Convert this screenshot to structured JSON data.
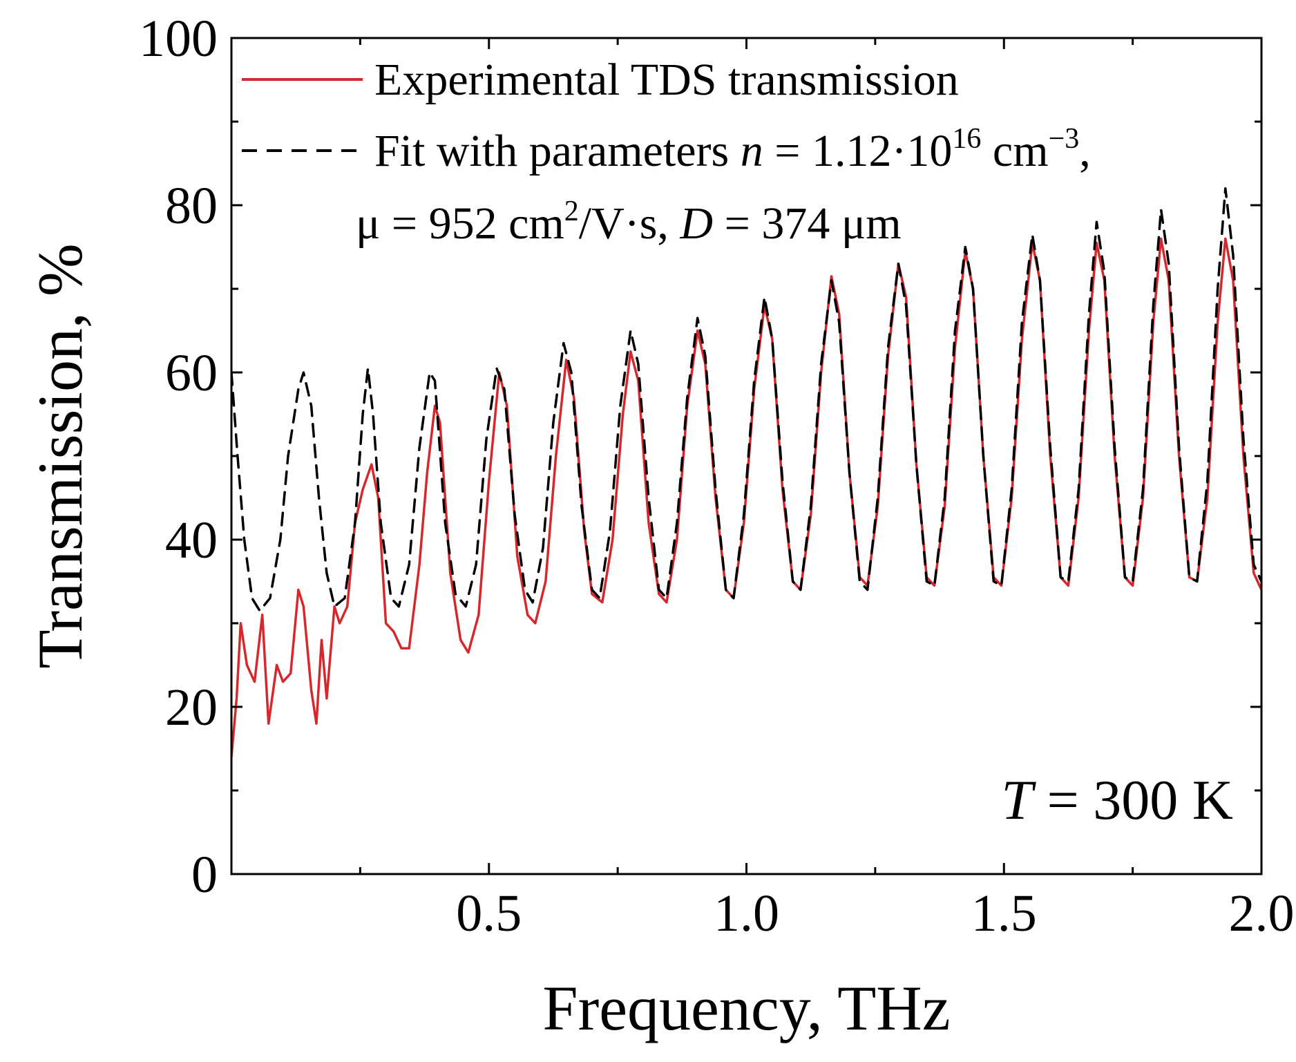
{
  "chart_data": {
    "type": "line",
    "xlabel": "Frequency, THz",
    "ylabel": "Transmission, %",
    "xlim": [
      0.0,
      2.0
    ],
    "ylim": [
      0,
      100
    ],
    "x_ticks": [
      0.5,
      1.0,
      1.5,
      2.0
    ],
    "x_tick_labels": [
      "0.5",
      "1.0",
      "1.5",
      "2.0"
    ],
    "x_minor_ticks": [
      0.25,
      0.75,
      1.25,
      1.75
    ],
    "y_ticks": [
      0,
      20,
      40,
      60,
      80,
      100
    ],
    "y_tick_labels": [
      "0",
      "20",
      "40",
      "60",
      "80",
      "100"
    ],
    "y_minor_ticks": [
      10,
      30,
      50,
      70,
      90
    ],
    "grid": false,
    "legend": {
      "placement": "top-left",
      "entries": [
        {
          "series": "experimental",
          "label": "Experimental TDS transmission"
        },
        {
          "series": "fit",
          "line1_prefix": "Fit with parameters ",
          "line1_var": "n",
          "line1_mid": " = 1.12·10",
          "line1_exp1": "16",
          "line1_unit": " cm",
          "line1_exp2": "−3",
          "line1_end": ",",
          "line2_mu": "μ = 952 cm",
          "line2_exp": "2",
          "line2_mid": "/V·s, ",
          "line2_var": "D",
          "line2_end": " = 374 μm"
        }
      ]
    },
    "annotation": {
      "var": "T",
      "text": " = 300 K",
      "placement": "bottom-right"
    },
    "series": [
      {
        "name": "experimental",
        "color": "#d6282c",
        "style": "solid",
        "points": [
          [
            0.0,
            14
          ],
          [
            0.01,
            21
          ],
          [
            0.018,
            30
          ],
          [
            0.03,
            25
          ],
          [
            0.045,
            23
          ],
          [
            0.06,
            31
          ],
          [
            0.072,
            18
          ],
          [
            0.088,
            25
          ],
          [
            0.1,
            23
          ],
          [
            0.115,
            24
          ],
          [
            0.13,
            34
          ],
          [
            0.14,
            32
          ],
          [
            0.155,
            22
          ],
          [
            0.165,
            18
          ],
          [
            0.175,
            28
          ],
          [
            0.185,
            21
          ],
          [
            0.2,
            32
          ],
          [
            0.21,
            30
          ],
          [
            0.225,
            32
          ],
          [
            0.24,
            42
          ],
          [
            0.255,
            46
          ],
          [
            0.272,
            49
          ],
          [
            0.285,
            45
          ],
          [
            0.3,
            30
          ],
          [
            0.315,
            29
          ],
          [
            0.33,
            27
          ],
          [
            0.345,
            27
          ],
          [
            0.365,
            37
          ],
          [
            0.38,
            48
          ],
          [
            0.395,
            56
          ],
          [
            0.405,
            54
          ],
          [
            0.425,
            36
          ],
          [
            0.445,
            28
          ],
          [
            0.46,
            26.5
          ],
          [
            0.48,
            31
          ],
          [
            0.5,
            47
          ],
          [
            0.52,
            60
          ],
          [
            0.535,
            56
          ],
          [
            0.555,
            38
          ],
          [
            0.575,
            31
          ],
          [
            0.59,
            30
          ],
          [
            0.61,
            35
          ],
          [
            0.63,
            50
          ],
          [
            0.65,
            61.5
          ],
          [
            0.665,
            57
          ],
          [
            0.685,
            41
          ],
          [
            0.7,
            33.5
          ],
          [
            0.72,
            32.5
          ],
          [
            0.74,
            40
          ],
          [
            0.76,
            55
          ],
          [
            0.775,
            62.5
          ],
          [
            0.79,
            59
          ],
          [
            0.81,
            42
          ],
          [
            0.83,
            33.5
          ],
          [
            0.845,
            32.5
          ],
          [
            0.865,
            40
          ],
          [
            0.885,
            56
          ],
          [
            0.905,
            65
          ],
          [
            0.92,
            61
          ],
          [
            0.94,
            45
          ],
          [
            0.96,
            34
          ],
          [
            0.975,
            33
          ],
          [
            0.995,
            42
          ],
          [
            1.015,
            58
          ],
          [
            1.035,
            68
          ],
          [
            1.05,
            64
          ],
          [
            1.07,
            46
          ],
          [
            1.09,
            35
          ],
          [
            1.105,
            34
          ],
          [
            1.125,
            43
          ],
          [
            1.145,
            60
          ],
          [
            1.165,
            71.5
          ],
          [
            1.18,
            67
          ],
          [
            1.2,
            48
          ],
          [
            1.22,
            35.5
          ],
          [
            1.235,
            34.5
          ],
          [
            1.255,
            44
          ],
          [
            1.275,
            62
          ],
          [
            1.295,
            73
          ],
          [
            1.31,
            69
          ],
          [
            1.33,
            49
          ],
          [
            1.35,
            35.5
          ],
          [
            1.365,
            34.5
          ],
          [
            1.385,
            44
          ],
          [
            1.405,
            63
          ],
          [
            1.425,
            74.5
          ],
          [
            1.44,
            70
          ],
          [
            1.46,
            50
          ],
          [
            1.48,
            35.5
          ],
          [
            1.495,
            34.5
          ],
          [
            1.515,
            45
          ],
          [
            1.535,
            64
          ],
          [
            1.555,
            75.5
          ],
          [
            1.57,
            71
          ],
          [
            1.59,
            50
          ],
          [
            1.61,
            35.5
          ],
          [
            1.625,
            34.5
          ],
          [
            1.645,
            45
          ],
          [
            1.665,
            65
          ],
          [
            1.68,
            75.5
          ],
          [
            1.695,
            71
          ],
          [
            1.715,
            50
          ],
          [
            1.735,
            35.5
          ],
          [
            1.75,
            34.5
          ],
          [
            1.77,
            45
          ],
          [
            1.79,
            66
          ],
          [
            1.805,
            76
          ],
          [
            1.82,
            71
          ],
          [
            1.84,
            50
          ],
          [
            1.86,
            35.5
          ],
          [
            1.875,
            35
          ],
          [
            1.895,
            45
          ],
          [
            1.915,
            66
          ],
          [
            1.93,
            76
          ],
          [
            1.945,
            71
          ],
          [
            1.965,
            50
          ],
          [
            1.985,
            36
          ],
          [
            2.0,
            34
          ]
        ]
      },
      {
        "name": "fit",
        "color": "#000000",
        "style": "dashed",
        "points": [
          [
            0.0,
            60
          ],
          [
            0.012,
            50
          ],
          [
            0.025,
            40
          ],
          [
            0.04,
            33
          ],
          [
            0.055,
            31.5
          ],
          [
            0.075,
            33
          ],
          [
            0.095,
            40
          ],
          [
            0.11,
            50
          ],
          [
            0.13,
            58
          ],
          [
            0.14,
            60
          ],
          [
            0.155,
            56
          ],
          [
            0.17,
            45
          ],
          [
            0.185,
            36
          ],
          [
            0.2,
            32
          ],
          [
            0.22,
            33
          ],
          [
            0.24,
            42
          ],
          [
            0.255,
            55
          ],
          [
            0.265,
            60.5
          ],
          [
            0.275,
            55
          ],
          [
            0.29,
            42
          ],
          [
            0.31,
            33
          ],
          [
            0.325,
            32
          ],
          [
            0.345,
            37
          ],
          [
            0.365,
            51
          ],
          [
            0.385,
            60
          ],
          [
            0.395,
            59
          ],
          [
            0.415,
            42
          ],
          [
            0.435,
            33.5
          ],
          [
            0.455,
            32
          ],
          [
            0.475,
            37
          ],
          [
            0.495,
            52
          ],
          [
            0.515,
            60.5
          ],
          [
            0.53,
            58
          ],
          [
            0.55,
            43
          ],
          [
            0.57,
            34
          ],
          [
            0.585,
            32.5
          ],
          [
            0.605,
            39
          ],
          [
            0.625,
            54
          ],
          [
            0.645,
            63.5
          ],
          [
            0.66,
            60
          ],
          [
            0.68,
            44
          ],
          [
            0.7,
            34
          ],
          [
            0.715,
            33
          ],
          [
            0.735,
            41
          ],
          [
            0.755,
            56
          ],
          [
            0.775,
            65
          ],
          [
            0.79,
            61
          ],
          [
            0.81,
            45
          ],
          [
            0.83,
            34
          ],
          [
            0.845,
            33
          ],
          [
            0.865,
            42
          ],
          [
            0.885,
            57
          ],
          [
            0.905,
            66.5
          ],
          [
            0.92,
            62
          ],
          [
            0.94,
            46
          ],
          [
            0.96,
            34
          ],
          [
            0.975,
            33
          ],
          [
            0.995,
            43
          ],
          [
            1.015,
            59
          ],
          [
            1.035,
            69
          ],
          [
            1.05,
            64
          ],
          [
            1.07,
            47
          ],
          [
            1.09,
            35
          ],
          [
            1.105,
            34
          ],
          [
            1.125,
            44
          ],
          [
            1.145,
            61
          ],
          [
            1.165,
            71
          ],
          [
            1.18,
            66
          ],
          [
            1.2,
            48
          ],
          [
            1.22,
            35
          ],
          [
            1.235,
            34
          ],
          [
            1.255,
            45
          ],
          [
            1.275,
            63
          ],
          [
            1.295,
            73
          ],
          [
            1.31,
            68
          ],
          [
            1.33,
            49
          ],
          [
            1.35,
            35
          ],
          [
            1.365,
            34.5
          ],
          [
            1.385,
            45
          ],
          [
            1.405,
            65
          ],
          [
            1.425,
            75
          ],
          [
            1.44,
            70
          ],
          [
            1.46,
            50
          ],
          [
            1.48,
            35
          ],
          [
            1.495,
            34.5
          ],
          [
            1.515,
            46
          ],
          [
            1.535,
            66
          ],
          [
            1.555,
            76.5
          ],
          [
            1.57,
            71
          ],
          [
            1.59,
            51
          ],
          [
            1.61,
            35.5
          ],
          [
            1.625,
            35
          ],
          [
            1.645,
            46
          ],
          [
            1.665,
            67
          ],
          [
            1.68,
            78
          ],
          [
            1.695,
            72
          ],
          [
            1.715,
            51
          ],
          [
            1.735,
            35.5
          ],
          [
            1.75,
            35
          ],
          [
            1.77,
            46
          ],
          [
            1.79,
            68
          ],
          [
            1.805,
            79.5
          ],
          [
            1.82,
            73
          ],
          [
            1.84,
            51
          ],
          [
            1.86,
            35.5
          ],
          [
            1.875,
            35
          ],
          [
            1.895,
            47
          ],
          [
            1.915,
            70
          ],
          [
            1.93,
            82
          ],
          [
            1.945,
            74
          ],
          [
            1.965,
            52
          ],
          [
            1.985,
            37
          ],
          [
            2.0,
            35
          ]
        ]
      }
    ]
  }
}
